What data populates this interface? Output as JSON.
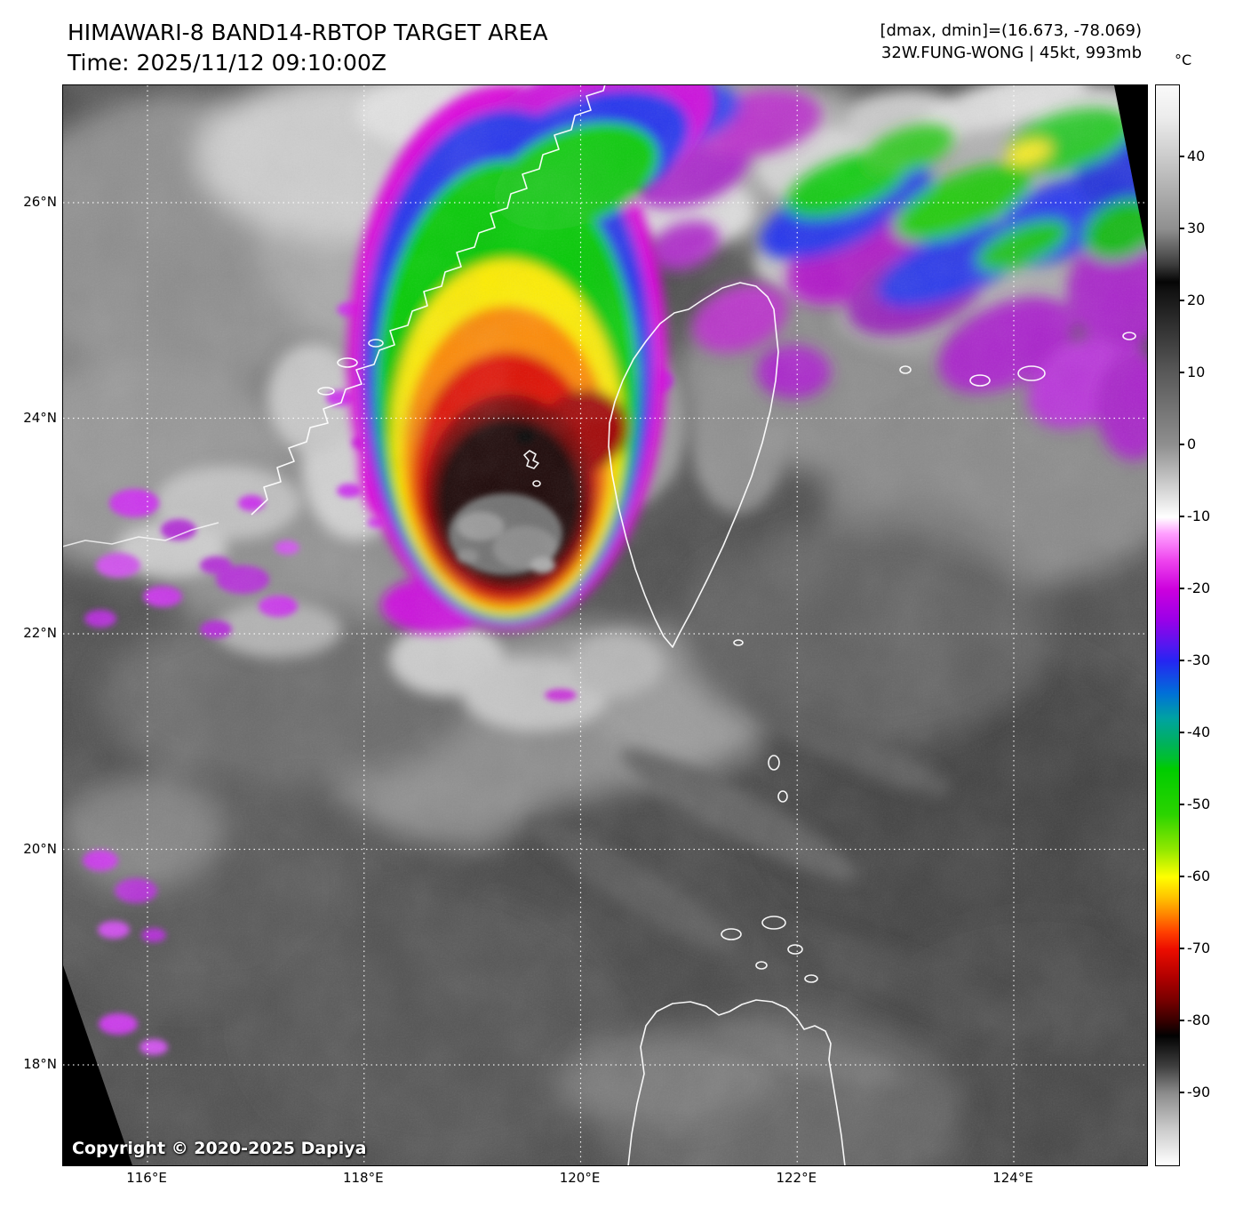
{
  "header": {
    "title": "HIMAWARI-8 BAND14-RBTOP TARGET AREA",
    "time_label": "Time: 2025/11/12 09:10:00Z",
    "dmax_dmin": "[dmax, dmin]=(16.673, -78.069)",
    "storm_info": "32W.FUNG-WONG | 45kt, 993mb"
  },
  "colorbar": {
    "unit": "°C",
    "ticks": [
      "40",
      "30",
      "20",
      "10",
      "0",
      "-10",
      "-20",
      "-30",
      "-40",
      "-50",
      "-60",
      "-70",
      "-80",
      "-90"
    ],
    "gradient_stops": [
      [
        0,
        "#fafafa"
      ],
      [
        3,
        "#ececec"
      ],
      [
        13.3,
        "#8f8f8f"
      ],
      [
        16.5,
        "#3f3f3f"
      ],
      [
        18.2,
        "#050505"
      ],
      [
        19,
        "#111111"
      ],
      [
        26.5,
        "#585858"
      ],
      [
        33.3,
        "#8f8f8f"
      ],
      [
        40,
        "#ffffff"
      ],
      [
        41.5,
        "#ffa0ff"
      ],
      [
        44,
        "#ee44ee"
      ],
      [
        46.7,
        "#cc00dd"
      ],
      [
        49.5,
        "#9a00e8"
      ],
      [
        52,
        "#5018f0"
      ],
      [
        53.3,
        "#2525f2"
      ],
      [
        56.3,
        "#0070d8"
      ],
      [
        58.6,
        "#00a2a2"
      ],
      [
        60.8,
        "#00b060"
      ],
      [
        62.5,
        "#00c128"
      ],
      [
        63.3,
        "#00cc00"
      ],
      [
        67.5,
        "#2bd400"
      ],
      [
        70.8,
        "#93e800"
      ],
      [
        73.3,
        "#ffff00"
      ],
      [
        75.2,
        "#ffc300"
      ],
      [
        76.7,
        "#ff8800"
      ],
      [
        78.4,
        "#ff4000"
      ],
      [
        80,
        "#ec0d00"
      ],
      [
        82.6,
        "#b00000"
      ],
      [
        84.7,
        "#780000"
      ],
      [
        86.6,
        "#380000"
      ],
      [
        88,
        "#020202"
      ],
      [
        90.8,
        "#3e3e3e"
      ],
      [
        93.3,
        "#8b8b8b"
      ],
      [
        96.6,
        "#cacaca"
      ],
      [
        100,
        "#ffffff"
      ]
    ]
  },
  "map": {
    "lat_labels": [
      "26°N",
      "24°N",
      "22°N",
      "20°N",
      "18°N"
    ],
    "lon_labels": [
      "116°E",
      "118°E",
      "120°E",
      "122°E",
      "124°E"
    ],
    "copyright": "Copyright © 2020-2025 Dapiya"
  }
}
